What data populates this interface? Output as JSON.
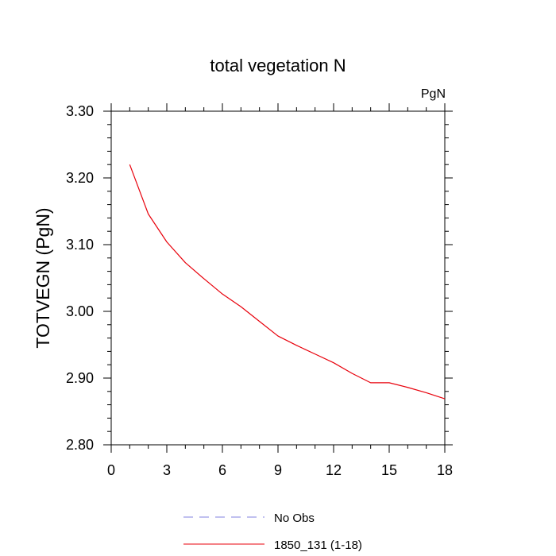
{
  "chart_data": {
    "type": "line",
    "title": "total vegetation N",
    "units_label": "PgN",
    "ylabel": "TOTVEGN  (PgN)",
    "xlabel": "",
    "xlim": [
      0,
      18
    ],
    "ylim": [
      2.8,
      3.3
    ],
    "x_ticks": [
      0,
      3,
      6,
      9,
      12,
      15,
      18
    ],
    "x_tick_labels": [
      "0",
      "3",
      "6",
      "9",
      "12",
      "15",
      "18"
    ],
    "y_ticks": [
      2.8,
      2.9,
      3.0,
      3.1,
      3.2,
      3.3
    ],
    "y_tick_labels": [
      "2.80",
      "2.90",
      "3.00",
      "3.10",
      "3.20",
      "3.30"
    ],
    "grid": false,
    "legend_position": "bottom",
    "series": [
      {
        "name": "1850_131 (1-18)",
        "color": "#e8000b",
        "line_style": "solid",
        "x": [
          1,
          2,
          3,
          4,
          5,
          6,
          7,
          8,
          9,
          10,
          11,
          12,
          13,
          14,
          15,
          16,
          17,
          18
        ],
        "values": [
          3.22,
          3.146,
          3.104,
          3.073,
          3.049,
          3.026,
          3.007,
          2.985,
          2.963,
          2.949,
          2.936,
          2.923,
          2.907,
          2.893,
          2.893,
          2.886,
          2.878,
          2.869
        ]
      }
    ],
    "legend": [
      {
        "label": "No Obs",
        "color": "#8080e0",
        "line_style": "dashed"
      },
      {
        "label": "1850_131 (1-18)",
        "color": "#e8000b",
        "line_style": "solid"
      }
    ]
  }
}
